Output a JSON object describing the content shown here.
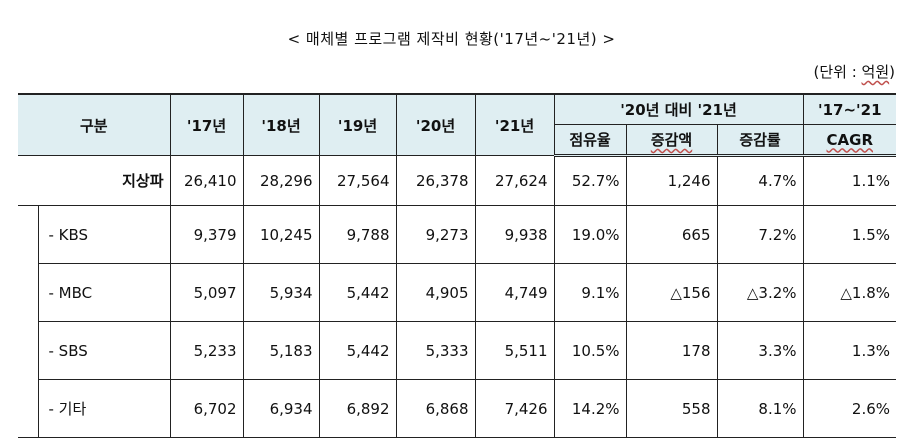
{
  "title": "< 매체별 프로그램 제작비 현황('17년~'21년) >",
  "unit": {
    "prefix": "(단위 : ",
    "word": "억원",
    "suffix": ")"
  },
  "table": {
    "headers": {
      "category": "구분",
      "y17": "'17년",
      "y18": "'18년",
      "y19": "'19년",
      "y20": "'20년",
      "y21": "'21년",
      "compare_group": "'20년 대비 '21년",
      "cagr_group": "'17~'21",
      "share": "점유율",
      "change_amount": "증감액",
      "change_rate": "증감률",
      "cagr": "CAGR"
    },
    "rows": [
      {
        "label": "지상파",
        "y17": "26,410",
        "y18": "28,296",
        "y19": "27,564",
        "y20": "26,378",
        "y21": "27,624",
        "share": "52.7%",
        "change_amount": "1,246",
        "change_rate": "4.7%",
        "cagr": "1.1%"
      },
      {
        "label": "- KBS",
        "y17": "9,379",
        "y18": "10,245",
        "y19": "9,788",
        "y20": "9,273",
        "y21": "9,938",
        "share": "19.0%",
        "change_amount": "665",
        "change_rate": "7.2%",
        "cagr": "1.5%"
      },
      {
        "label": "- MBC",
        "y17": "5,097",
        "y18": "5,934",
        "y19": "5,442",
        "y20": "4,905",
        "y21": "4,749",
        "share": "9.1%",
        "change_amount": "△156",
        "change_rate": "△3.2%",
        "cagr": "△1.8%"
      },
      {
        "label": "- SBS",
        "y17": "5,233",
        "y18": "5,183",
        "y19": "5,442",
        "y20": "5,333",
        "y21": "5,511",
        "share": "10.5%",
        "change_amount": "178",
        "change_rate": "3.3%",
        "cagr": "1.3%"
      },
      {
        "label": "- 기타",
        "y17": "6,702",
        "y18": "6,934",
        "y19": "6,892",
        "y20": "6,868",
        "y21": "7,426",
        "share": "14.2%",
        "change_amount": "558",
        "change_rate": "8.1%",
        "cagr": "2.6%"
      }
    ]
  }
}
